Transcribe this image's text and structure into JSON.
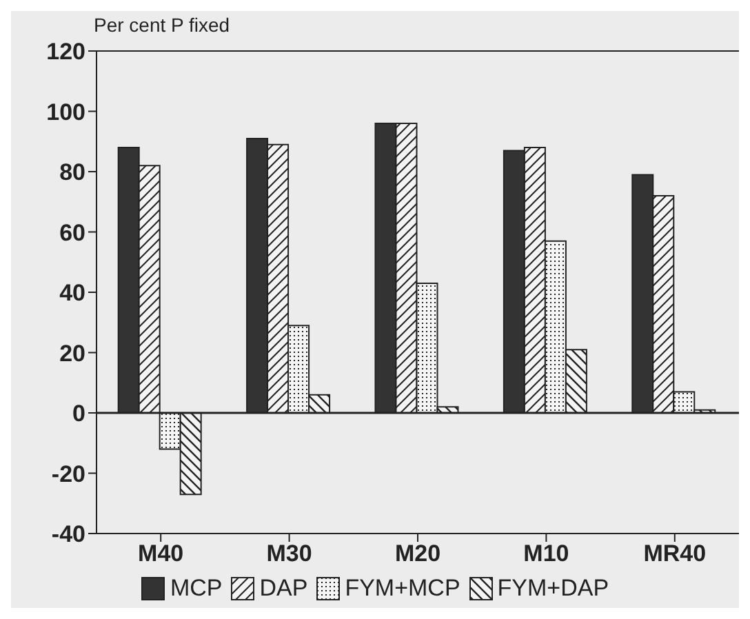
{
  "chart_data": {
    "type": "bar",
    "ylabel": "Per cent P fixed",
    "categories": [
      "M40",
      "M30",
      "M20",
      "M10",
      "MR40"
    ],
    "series": [
      {
        "name": "MCP",
        "color": "#333333",
        "values": [
          88,
          91,
          96,
          87,
          79
        ]
      },
      {
        "name": "DAP",
        "color": "#222222",
        "values": [
          82,
          89,
          96,
          88,
          72
        ]
      },
      {
        "name": "FYM+MCP",
        "color": "#222222",
        "values": [
          -12,
          29,
          43,
          57,
          7
        ]
      },
      {
        "name": "FYM+DAP",
        "color": "#222222",
        "values": [
          -27,
          6,
          2,
          21,
          1
        ]
      }
    ],
    "ylim": [
      -40,
      120
    ],
    "yticks": [
      -40,
      -20,
      0,
      20,
      40,
      60,
      80,
      100,
      120
    ],
    "ref_lines": [
      {
        "axis": "y",
        "value": 0
      }
    ],
    "grid": false,
    "legend": "bottom"
  }
}
